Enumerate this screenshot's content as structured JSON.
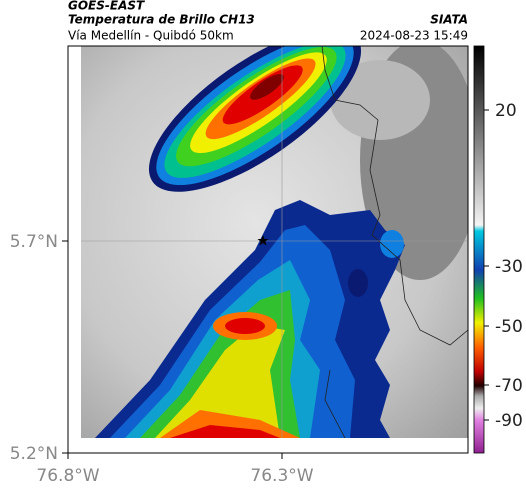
{
  "header": {
    "title": "GOES-EAST",
    "subtitle": "Temperatura de Brillo CH13",
    "source": "SIATA",
    "location": "Vía Medellín - Quibdó 50km",
    "datetime": "2024-08-23 15:49"
  },
  "map": {
    "lat_labels": [
      "5.7°N",
      "5.2°N"
    ],
    "lon_labels": [
      "76.8°W",
      "76.3°W"
    ]
  },
  "colorbar": {
    "ticks": [
      "20",
      "-30",
      "-50",
      "-70",
      "-90"
    ]
  }
}
